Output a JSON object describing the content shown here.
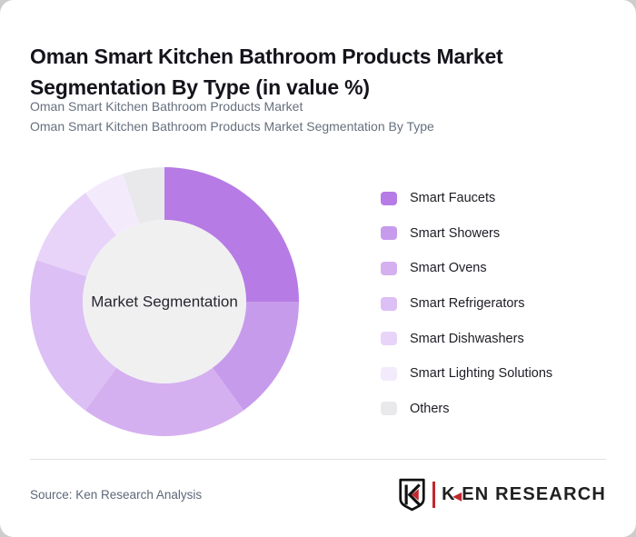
{
  "window": {
    "background_color": "#cdcdcd",
    "card_background": "#ffffff"
  },
  "header": {
    "title": "Oman Smart Kitchen Bathroom Products Market Segmentation By Type (in value %)",
    "subtitle_lines": [
      "Oman Smart Kitchen Bathroom Products Market",
      "Oman Smart Kitchen Bathroom Products Market Segmentation By Type"
    ]
  },
  "chart_data": {
    "type": "pie",
    "subtype": "donut",
    "title": "Oman Smart Kitchen Bathroom Products Market Segmentation By Type (in value %)",
    "unit": "value %",
    "center_label": "Market Segmentation",
    "categories": [
      "Smart Faucets",
      "Smart Showers",
      "Smart Ovens",
      "Smart Refrigerators",
      "Smart Dishwashers",
      "Smart Lighting Solutions",
      "Others"
    ],
    "values": [
      25,
      15,
      20,
      20,
      10,
      5,
      5
    ],
    "colors": [
      "#b67be4",
      "#c79bec",
      "#d5b0f0",
      "#dcbff4",
      "#e8d4f8",
      "#f3ebfc",
      "#e9e9eb"
    ],
    "start_angle_deg": 0,
    "direction": "clockwise",
    "inner_radius_ratio": 0.61,
    "center_circle_color": "#f0f0f1",
    "legend_position": "right",
    "data_labels_shown": false
  },
  "footer": {
    "source": "Source: Ken Research Analysis",
    "logo": {
      "brand_k": "K",
      "brand_rest": "EN RESEARCH",
      "triangle_glyph": "◀",
      "accent_color": "#c1272d"
    }
  }
}
